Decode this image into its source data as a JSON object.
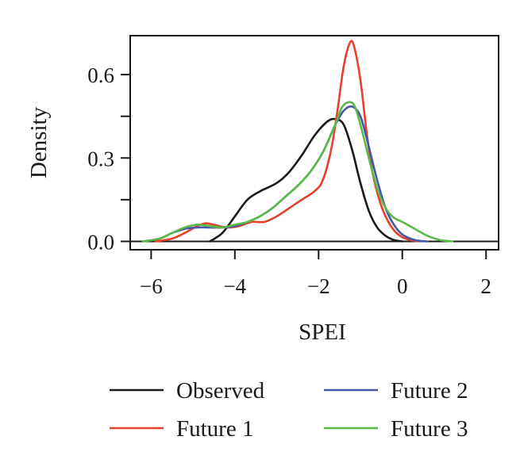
{
  "chart_data": {
    "type": "line",
    "xlabel": "SPEI",
    "ylabel": "Density",
    "xlim": [
      -6.5,
      2.3
    ],
    "ylim": [
      -0.03,
      0.74
    ],
    "x_ticks": [
      -6,
      -4,
      -2,
      0,
      2
    ],
    "x_tick_labels": [
      "−6",
      "−4",
      "−2",
      "0",
      "2"
    ],
    "y_ticks": [
      0.0,
      0.3,
      0.6
    ],
    "y_tick_labels": [
      "0.0",
      "0.3",
      "0.6"
    ],
    "y_minor_ticks": [
      0.15,
      0.45
    ],
    "grid": false,
    "legend_position": "bottom",
    "series": [
      {
        "name": "Observed",
        "color": "#1a1a1a",
        "x": [
          -4.6,
          -4.3,
          -4.0,
          -3.7,
          -3.4,
          -3.0,
          -2.7,
          -2.4,
          -2.1,
          -1.8,
          -1.6,
          -1.4,
          -1.2,
          -1.0,
          -0.8,
          -0.6,
          -0.4,
          -0.2,
          0.0
        ],
        "y": [
          0.0,
          0.03,
          0.09,
          0.15,
          0.18,
          0.21,
          0.25,
          0.31,
          0.38,
          0.43,
          0.44,
          0.42,
          0.33,
          0.21,
          0.11,
          0.05,
          0.02,
          0.005,
          0.0
        ]
      },
      {
        "name": "Future 1",
        "color": "#e8402a",
        "x": [
          -5.9,
          -5.5,
          -5.2,
          -4.9,
          -4.7,
          -4.5,
          -4.2,
          -3.9,
          -3.6,
          -3.3,
          -3.0,
          -2.7,
          -2.4,
          -2.1,
          -1.9,
          -1.7,
          -1.55,
          -1.4,
          -1.25,
          -1.15,
          -1.0,
          -0.85,
          -0.7,
          -0.55,
          -0.4,
          -0.2,
          0.0,
          0.2,
          0.4
        ],
        "y": [
          0.0,
          0.01,
          0.03,
          0.055,
          0.065,
          0.06,
          0.05,
          0.055,
          0.07,
          0.07,
          0.09,
          0.12,
          0.15,
          0.18,
          0.22,
          0.33,
          0.47,
          0.63,
          0.715,
          0.7,
          0.58,
          0.39,
          0.24,
          0.15,
          0.09,
          0.04,
          0.015,
          0.005,
          0.0
        ]
      },
      {
        "name": "Future 2",
        "color": "#4656a8",
        "x": [
          -6.2,
          -5.8,
          -5.5,
          -5.2,
          -4.9,
          -4.6,
          -4.3,
          -4.0,
          -3.7,
          -3.4,
          -3.1,
          -2.8,
          -2.5,
          -2.2,
          -1.9,
          -1.6,
          -1.4,
          -1.2,
          -1.0,
          -0.8,
          -0.6,
          -0.4,
          -0.2,
          0.0,
          0.3,
          0.6
        ],
        "y": [
          0.0,
          0.01,
          0.03,
          0.045,
          0.05,
          0.05,
          0.05,
          0.055,
          0.07,
          0.09,
          0.12,
          0.16,
          0.2,
          0.25,
          0.32,
          0.42,
          0.47,
          0.485,
          0.45,
          0.34,
          0.22,
          0.12,
          0.06,
          0.025,
          0.005,
          0.0
        ]
      },
      {
        "name": "Future 3",
        "color": "#5ab848",
        "x": [
          -6.2,
          -5.8,
          -5.5,
          -5.2,
          -4.9,
          -4.6,
          -4.3,
          -4.0,
          -3.7,
          -3.4,
          -3.1,
          -2.8,
          -2.5,
          -2.2,
          -1.9,
          -1.6,
          -1.45,
          -1.3,
          -1.15,
          -1.0,
          -0.8,
          -0.6,
          -0.4,
          -0.2,
          0.0,
          0.3,
          0.6,
          0.9,
          1.2
        ],
        "y": [
          0.0,
          0.01,
          0.03,
          0.05,
          0.06,
          0.055,
          0.05,
          0.06,
          0.07,
          0.09,
          0.12,
          0.16,
          0.2,
          0.25,
          0.32,
          0.42,
          0.48,
          0.5,
          0.49,
          0.42,
          0.3,
          0.19,
          0.12,
          0.085,
          0.07,
          0.045,
          0.02,
          0.005,
          0.0
        ]
      }
    ]
  }
}
